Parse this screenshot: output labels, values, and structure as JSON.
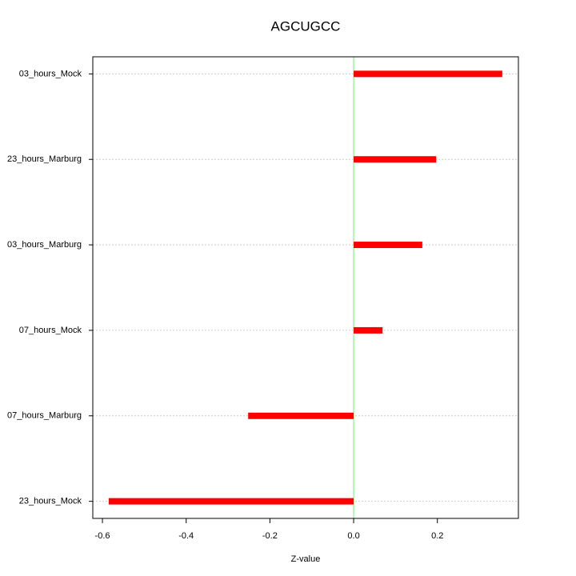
{
  "chart_data": {
    "type": "barh",
    "title": "AGCUGCC",
    "x_label": "Z-value",
    "categories": [
      "03_hours_Mock",
      "23_hours_Marburg",
      "03_hours_Marburg",
      "07_hours_Mock",
      "07_hours_Marburg",
      "23_hours_Mock"
    ],
    "values": [
      0.355,
      0.197,
      0.164,
      0.069,
      -0.252,
      -0.585
    ],
    "color": "#ff0000",
    "zero_line_color": "#90ee90",
    "xlim": [
      -0.623,
      0.3935
    ],
    "xticks": [
      -0.6,
      -0.4,
      -0.2,
      {
        "value": 0,
        "label": "0.0"
      },
      0.2
    ],
    "grid": true
  }
}
